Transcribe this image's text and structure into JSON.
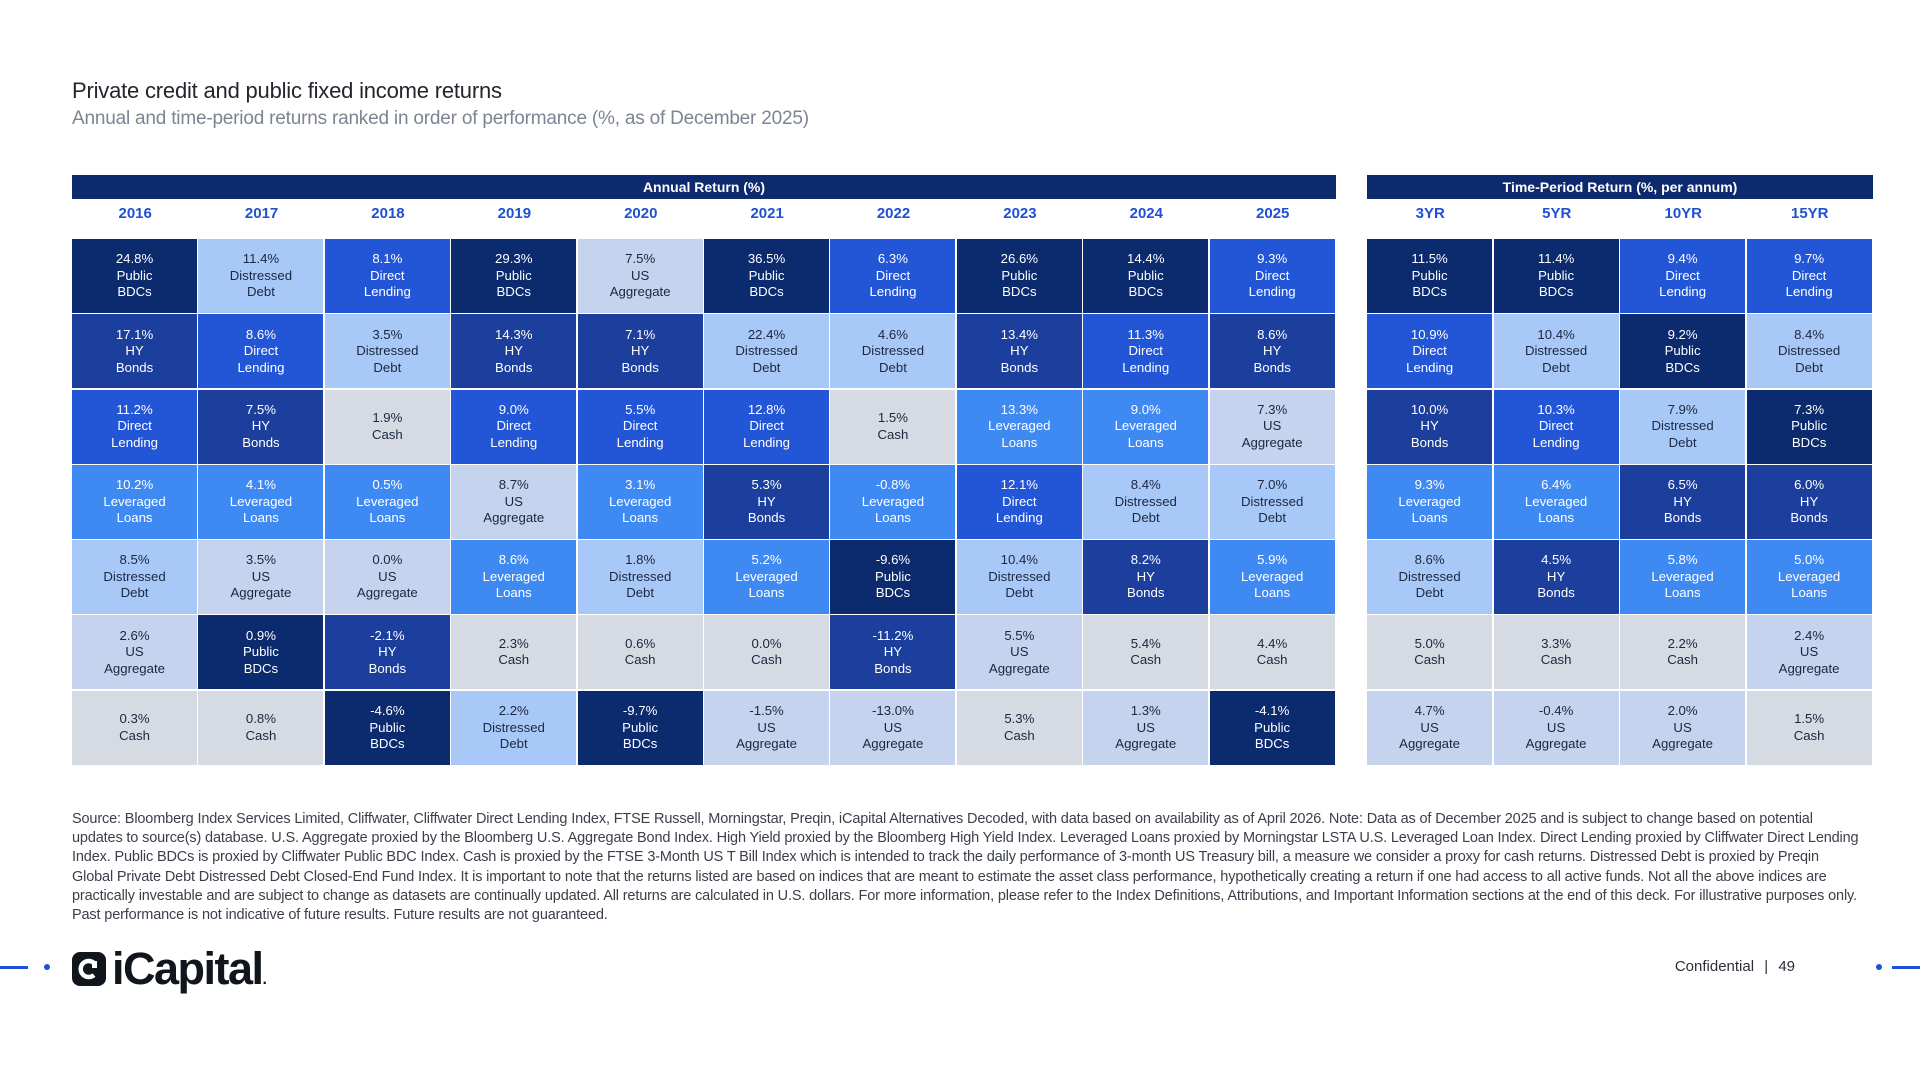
{
  "title": "Private credit and public fixed income returns",
  "subtitle": "Annual and time-period returns ranked in order of performance (%, as of December 2025)",
  "colors": {
    "Public BDCs": "#0c2a6e",
    "HY Bonds": "#1c3f9e",
    "Direct Lending": "#2356d6",
    "Leveraged Loans": "#3f8af2",
    "Distressed Debt": "#a8c8f7",
    "US Aggregate": "#c5d3ef",
    "Cash": "#d6dbe3"
  },
  "chart_data": {
    "type": "table",
    "annual": {
      "header": "Annual Return (%)",
      "columns": [
        {
          "label": "2016",
          "cells": [
            {
              "value": "24.8%",
              "asset": [
                "Public",
                "BDCs"
              ]
            },
            {
              "value": "17.1%",
              "asset": [
                "HY",
                "Bonds"
              ]
            },
            {
              "value": "11.2%",
              "asset": [
                "Direct",
                "Lending"
              ]
            },
            {
              "value": "10.2%",
              "asset": [
                "Leveraged",
                "Loans"
              ]
            },
            {
              "value": "8.5%",
              "asset": [
                "Distressed",
                "Debt"
              ]
            },
            {
              "value": "2.6%",
              "asset": [
                "US",
                "Aggregate"
              ]
            },
            {
              "value": "0.3%",
              "asset": [
                "Cash"
              ]
            }
          ]
        },
        {
          "label": "2017",
          "cells": [
            {
              "value": "11.4%",
              "asset": [
                "Distressed",
                "Debt"
              ]
            },
            {
              "value": "8.6%",
              "asset": [
                "Direct",
                "Lending"
              ]
            },
            {
              "value": "7.5%",
              "asset": [
                "HY",
                "Bonds"
              ]
            },
            {
              "value": "4.1%",
              "asset": [
                "Leveraged",
                "Loans"
              ]
            },
            {
              "value": "3.5%",
              "asset": [
                "US",
                "Aggregate"
              ]
            },
            {
              "value": "0.9%",
              "asset": [
                "Public",
                "BDCs"
              ]
            },
            {
              "value": "0.8%",
              "asset": [
                "Cash"
              ]
            }
          ]
        },
        {
          "label": "2018",
          "cells": [
            {
              "value": "8.1%",
              "asset": [
                "Direct",
                "Lending"
              ]
            },
            {
              "value": "3.5%",
              "asset": [
                "Distressed",
                "Debt"
              ]
            },
            {
              "value": "1.9%",
              "asset": [
                "Cash"
              ]
            },
            {
              "value": "0.5%",
              "asset": [
                "Leveraged",
                "Loans"
              ]
            },
            {
              "value": "0.0%",
              "asset": [
                "US",
                "Aggregate"
              ]
            },
            {
              "value": "-2.1%",
              "asset": [
                "HY",
                "Bonds"
              ]
            },
            {
              "value": "-4.6%",
              "asset": [
                "Public",
                "BDCs"
              ]
            }
          ]
        },
        {
          "label": "2019",
          "cells": [
            {
              "value": "29.3%",
              "asset": [
                "Public",
                "BDCs"
              ]
            },
            {
              "value": "14.3%",
              "asset": [
                "HY",
                "Bonds"
              ]
            },
            {
              "value": "9.0%",
              "asset": [
                "Direct",
                "Lending"
              ]
            },
            {
              "value": "8.7%",
              "asset": [
                "US",
                "Aggregate"
              ]
            },
            {
              "value": "8.6%",
              "asset": [
                "Leveraged",
                "Loans"
              ]
            },
            {
              "value": "2.3%",
              "asset": [
                "Cash"
              ]
            },
            {
              "value": "2.2%",
              "asset": [
                "Distressed",
                "Debt"
              ]
            }
          ]
        },
        {
          "label": "2020",
          "cells": [
            {
              "value": "7.5%",
              "asset": [
                "US",
                "Aggregate"
              ]
            },
            {
              "value": "7.1%",
              "asset": [
                "HY",
                "Bonds"
              ]
            },
            {
              "value": "5.5%",
              "asset": [
                "Direct",
                "Lending"
              ]
            },
            {
              "value": "3.1%",
              "asset": [
                "Leveraged",
                "Loans"
              ]
            },
            {
              "value": "1.8%",
              "asset": [
                "Distressed",
                "Debt"
              ]
            },
            {
              "value": "0.6%",
              "asset": [
                "Cash"
              ]
            },
            {
              "value": "-9.7%",
              "asset": [
                "Public",
                "BDCs"
              ]
            }
          ]
        },
        {
          "label": "2021",
          "cells": [
            {
              "value": "36.5%",
              "asset": [
                "Public",
                "BDCs"
              ]
            },
            {
              "value": "22.4%",
              "asset": [
                "Distressed",
                "Debt"
              ]
            },
            {
              "value": "12.8%",
              "asset": [
                "Direct",
                "Lending"
              ]
            },
            {
              "value": "5.3%",
              "asset": [
                "HY",
                "Bonds"
              ]
            },
            {
              "value": "5.2%",
              "asset": [
                "Leveraged",
                "Loans"
              ]
            },
            {
              "value": "0.0%",
              "asset": [
                "Cash"
              ]
            },
            {
              "value": "-1.5%",
              "asset": [
                "US",
                "Aggregate"
              ]
            }
          ]
        },
        {
          "label": "2022",
          "cells": [
            {
              "value": "6.3%",
              "asset": [
                "Direct",
                "Lending"
              ]
            },
            {
              "value": "4.6%",
              "asset": [
                "Distressed",
                "Debt"
              ]
            },
            {
              "value": "1.5%",
              "asset": [
                "Cash"
              ]
            },
            {
              "value": "-0.8%",
              "asset": [
                "Leveraged",
                "Loans"
              ]
            },
            {
              "value": "-9.6%",
              "asset": [
                "Public",
                "BDCs"
              ]
            },
            {
              "value": "-11.2%",
              "asset": [
                "HY",
                "Bonds"
              ]
            },
            {
              "value": "-13.0%",
              "asset": [
                "US",
                "Aggregate"
              ]
            }
          ]
        },
        {
          "label": "2023",
          "cells": [
            {
              "value": "26.6%",
              "asset": [
                "Public",
                "BDCs"
              ]
            },
            {
              "value": "13.4%",
              "asset": [
                "HY",
                "Bonds"
              ]
            },
            {
              "value": "13.3%",
              "asset": [
                "Leveraged",
                "Loans"
              ]
            },
            {
              "value": "12.1%",
              "asset": [
                "Direct",
                "Lending"
              ]
            },
            {
              "value": "10.4%",
              "asset": [
                "Distressed",
                "Debt"
              ]
            },
            {
              "value": "5.5%",
              "asset": [
                "US",
                "Aggregate"
              ]
            },
            {
              "value": "5.3%",
              "asset": [
                "Cash"
              ]
            }
          ]
        },
        {
          "label": "2024",
          "cells": [
            {
              "value": "14.4%",
              "asset": [
                "Public",
                "BDCs"
              ]
            },
            {
              "value": "11.3%",
              "asset": [
                "Direct",
                "Lending"
              ]
            },
            {
              "value": "9.0%",
              "asset": [
                "Leveraged",
                "Loans"
              ]
            },
            {
              "value": "8.4%",
              "asset": [
                "Distressed",
                "Debt"
              ]
            },
            {
              "value": "8.2%",
              "asset": [
                "HY",
                "Bonds"
              ]
            },
            {
              "value": "5.4%",
              "asset": [
                "Cash"
              ]
            },
            {
              "value": "1.3%",
              "asset": [
                "US",
                "Aggregate"
              ]
            }
          ]
        },
        {
          "label": "2025",
          "cells": [
            {
              "value": "9.3%",
              "asset": [
                "Direct",
                "Lending"
              ]
            },
            {
              "value": "8.6%",
              "asset": [
                "HY",
                "Bonds"
              ]
            },
            {
              "value": "7.3%",
              "asset": [
                "US",
                "Aggregate"
              ]
            },
            {
              "value": "7.0%",
              "asset": [
                "Distressed",
                "Debt"
              ]
            },
            {
              "value": "5.9%",
              "asset": [
                "Leveraged",
                "Loans"
              ]
            },
            {
              "value": "4.4%",
              "asset": [
                "Cash"
              ]
            },
            {
              "value": "-4.1%",
              "asset": [
                "Public",
                "BDCs"
              ]
            }
          ]
        }
      ]
    },
    "period": {
      "header": "Time-Period Return (%, per annum)",
      "columns": [
        {
          "label": "3YR",
          "cells": [
            {
              "value": "11.5%",
              "asset": [
                "Public",
                "BDCs"
              ]
            },
            {
              "value": "10.9%",
              "asset": [
                "Direct",
                "Lending"
              ]
            },
            {
              "value": "10.0%",
              "asset": [
                "HY",
                "Bonds"
              ]
            },
            {
              "value": "9.3%",
              "asset": [
                "Leveraged",
                "Loans"
              ]
            },
            {
              "value": "8.6%",
              "asset": [
                "Distressed",
                "Debt"
              ]
            },
            {
              "value": "5.0%",
              "asset": [
                "Cash"
              ]
            },
            {
              "value": "4.7%",
              "asset": [
                "US",
                "Aggregate"
              ]
            }
          ]
        },
        {
          "label": "5YR",
          "cells": [
            {
              "value": "11.4%",
              "asset": [
                "Public",
                "BDCs"
              ]
            },
            {
              "value": "10.4%",
              "asset": [
                "Distressed",
                "Debt"
              ]
            },
            {
              "value": "10.3%",
              "asset": [
                "Direct",
                "Lending"
              ]
            },
            {
              "value": "6.4%",
              "asset": [
                "Leveraged",
                "Loans"
              ]
            },
            {
              "value": "4.5%",
              "asset": [
                "HY",
                "Bonds"
              ]
            },
            {
              "value": "3.3%",
              "asset": [
                "Cash"
              ]
            },
            {
              "value": "-0.4%",
              "asset": [
                "US",
                "Aggregate"
              ]
            }
          ]
        },
        {
          "label": "10YR",
          "cells": [
            {
              "value": "9.4%",
              "asset": [
                "Direct",
                "Lending"
              ]
            },
            {
              "value": "9.2%",
              "asset": [
                "Public",
                "BDCs"
              ]
            },
            {
              "value": "7.9%",
              "asset": [
                "Distressed",
                "Debt"
              ]
            },
            {
              "value": "6.5%",
              "asset": [
                "HY",
                "Bonds"
              ]
            },
            {
              "value": "5.8%",
              "asset": [
                "Leveraged",
                "Loans"
              ]
            },
            {
              "value": "2.2%",
              "asset": [
                "Cash"
              ]
            },
            {
              "value": "2.0%",
              "asset": [
                "US",
                "Aggregate"
              ]
            }
          ]
        },
        {
          "label": "15YR",
          "cells": [
            {
              "value": "9.7%",
              "asset": [
                "Direct",
                "Lending"
              ]
            },
            {
              "value": "8.4%",
              "asset": [
                "Distressed",
                "Debt"
              ]
            },
            {
              "value": "7.3%",
              "asset": [
                "Public",
                "BDCs"
              ]
            },
            {
              "value": "6.0%",
              "asset": [
                "HY",
                "Bonds"
              ]
            },
            {
              "value": "5.0%",
              "asset": [
                "Leveraged",
                "Loans"
              ]
            },
            {
              "value": "2.4%",
              "asset": [
                "US",
                "Aggregate"
              ]
            },
            {
              "value": "1.5%",
              "asset": [
                "Cash"
              ]
            }
          ]
        }
      ]
    }
  },
  "footnote": "Source: Bloomberg Index Services Limited, Cliffwater, Cliffwater Direct Lending Index, FTSE Russell, Morningstar, Preqin, iCapital Alternatives Decoded, with data based on availability as of April 2026. Note: Data as of December 2025 and is subject to change based on potential updates to source(s) database. U.S. Aggregate proxied by the Bloomberg U.S. Aggregate Bond Index. High Yield proxied by the Bloomberg High Yield Index. Leveraged Loans proxied by Morningstar LSTA U.S. Leveraged Loan Index. Direct Lending proxied by Cliffwater Direct Lending Index. Public BDCs is proxied by Cliffwater Public BDC Index. Cash is proxied by the FTSE 3-Month US T Bill Index which is intended to track the daily performance of 3-month US Treasury bill, a measure we consider a proxy for cash returns. Distressed Debt is proxied by Preqin Global Private Debt Distressed Debt Closed-End Fund Index. It is important to note that the returns listed are based on indices that are meant to estimate the asset class performance, hypothetically creating a return if one had access to all active funds. Not all the above indices are practically investable and are subject to change as datasets are continually updated. All returns are calculated in U.S. dollars. For more information, please refer to the Index Definitions, Attributions, and Important Information sections at the end of this deck. For illustrative purposes only. Past performance is not indicative of future results. Future results are not guaranteed.",
  "footer": {
    "logo_text": "iCapital",
    "logo_suffix": ".",
    "confidential": "Confidential",
    "separator": "|",
    "page_number": "49"
  }
}
